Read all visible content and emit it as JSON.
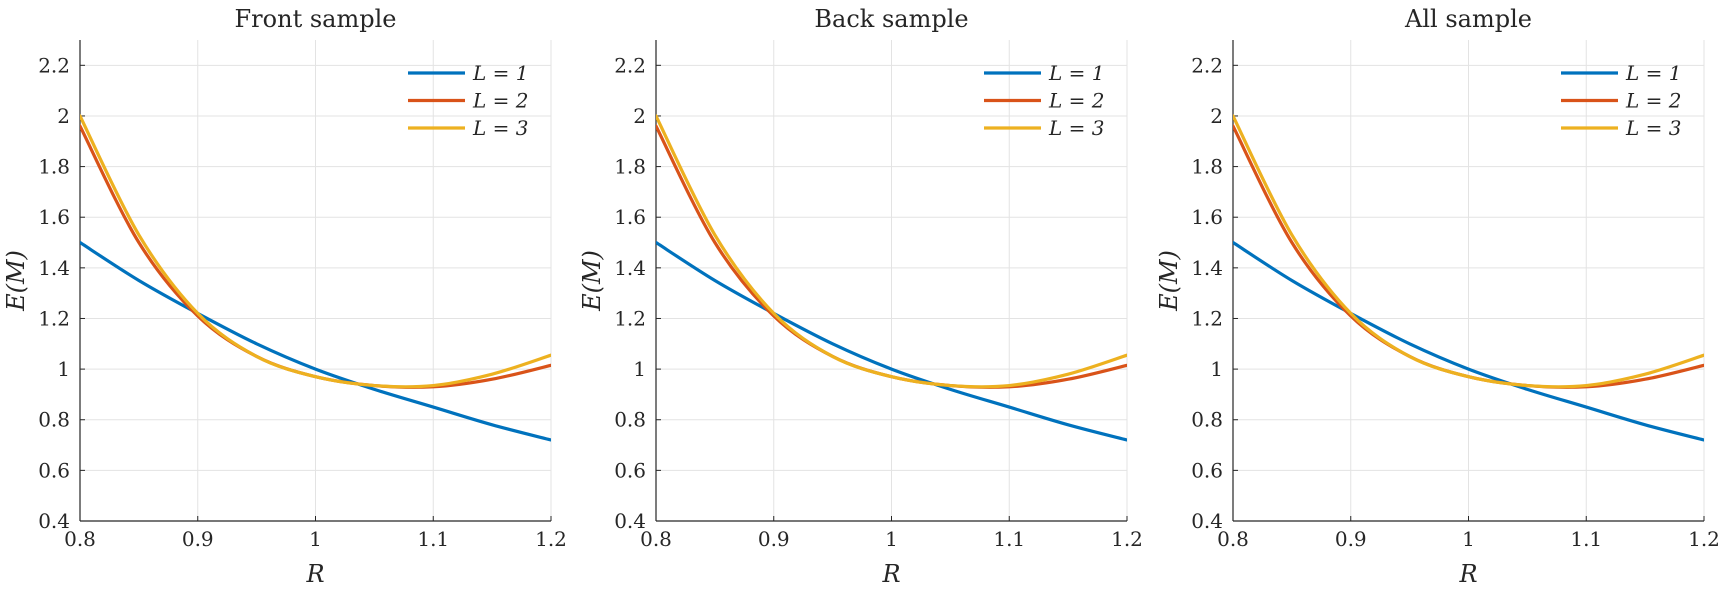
{
  "chart_data": [
    {
      "type": "line",
      "title": "Front sample",
      "xlabel": "R",
      "ylabel": "E(M)",
      "xlim": [
        0.8,
        1.2
      ],
      "ylim": [
        0.4,
        2.3
      ],
      "xticks": [
        "0.8",
        "0.9",
        "1",
        "1.1",
        "1.2"
      ],
      "yticks": [
        "0.4",
        "0.6",
        "0.8",
        "1",
        "1.2",
        "1.4",
        "1.6",
        "1.8",
        "2",
        "2.2"
      ],
      "grid": true,
      "legend": "top-right",
      "x": [
        0.8,
        0.85,
        0.9,
        0.95,
        1.0,
        1.05,
        1.1,
        1.15,
        1.2
      ],
      "series": [
        {
          "name": "L = 1",
          "color": "#0072BD",
          "values": [
            1.5,
            1.35,
            1.22,
            1.1,
            1.0,
            0.92,
            0.85,
            0.78,
            0.72
          ]
        },
        {
          "name": "L = 2",
          "color": "#D95319",
          "values": [
            1.96,
            1.5,
            1.21,
            1.05,
            0.97,
            0.935,
            0.93,
            0.96,
            1.015
          ]
        },
        {
          "name": "L = 3",
          "color": "#EDB120",
          "values": [
            2.0,
            1.53,
            1.22,
            1.05,
            0.97,
            0.935,
            0.935,
            0.98,
            1.055
          ]
        }
      ]
    },
    {
      "type": "line",
      "title": "Back sample",
      "xlabel": "R",
      "ylabel": "E(M)",
      "xlim": [
        0.8,
        1.2
      ],
      "ylim": [
        0.4,
        2.3
      ],
      "xticks": [
        "0.8",
        "0.9",
        "1",
        "1.1",
        "1.2"
      ],
      "yticks": [
        "0.4",
        "0.6",
        "0.8",
        "1",
        "1.2",
        "1.4",
        "1.6",
        "1.8",
        "2",
        "2.2"
      ],
      "grid": true,
      "legend": "top-right",
      "x": [
        0.8,
        0.85,
        0.9,
        0.95,
        1.0,
        1.05,
        1.1,
        1.15,
        1.2
      ],
      "series": [
        {
          "name": "L = 1",
          "color": "#0072BD",
          "values": [
            1.5,
            1.35,
            1.22,
            1.1,
            1.0,
            0.92,
            0.85,
            0.78,
            0.72
          ]
        },
        {
          "name": "L = 2",
          "color": "#D95319",
          "values": [
            1.96,
            1.5,
            1.21,
            1.05,
            0.97,
            0.935,
            0.93,
            0.96,
            1.015
          ]
        },
        {
          "name": "L = 3",
          "color": "#EDB120",
          "values": [
            2.0,
            1.53,
            1.22,
            1.05,
            0.97,
            0.935,
            0.935,
            0.98,
            1.055
          ]
        }
      ]
    },
    {
      "type": "line",
      "title": "All sample",
      "xlabel": "R",
      "ylabel": "E(M)",
      "xlim": [
        0.8,
        1.2
      ],
      "ylim": [
        0.4,
        2.3
      ],
      "xticks": [
        "0.8",
        "0.9",
        "1",
        "1.1",
        "1.2"
      ],
      "yticks": [
        "0.4",
        "0.6",
        "0.8",
        "1",
        "1.2",
        "1.4",
        "1.6",
        "1.8",
        "2",
        "2.2"
      ],
      "grid": true,
      "legend": "top-right",
      "x": [
        0.8,
        0.85,
        0.9,
        0.95,
        1.0,
        1.05,
        1.1,
        1.15,
        1.2
      ],
      "series": [
        {
          "name": "L = 1",
          "color": "#0072BD",
          "values": [
            1.5,
            1.35,
            1.22,
            1.1,
            1.0,
            0.92,
            0.85,
            0.78,
            0.72
          ]
        },
        {
          "name": "L = 2",
          "color": "#D95319",
          "values": [
            1.96,
            1.5,
            1.21,
            1.05,
            0.97,
            0.935,
            0.93,
            0.96,
            1.015
          ]
        },
        {
          "name": "L = 3",
          "color": "#EDB120",
          "values": [
            2.0,
            1.53,
            1.22,
            1.05,
            0.97,
            0.935,
            0.935,
            0.98,
            1.055
          ]
        }
      ]
    }
  ]
}
